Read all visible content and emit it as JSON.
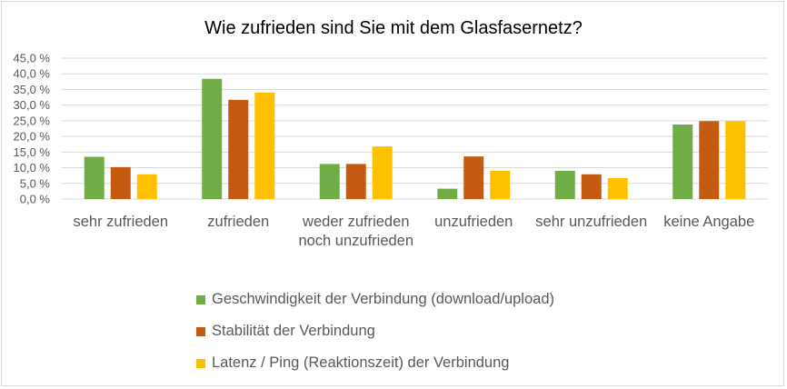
{
  "chart_data": {
    "type": "bar",
    "title": "Wie zufrieden sind Sie mit dem Glasfasernetz?",
    "categories": [
      "sehr zufrieden",
      "zufrieden",
      "weder zufrieden noch unzufrieden",
      "unzufrieden",
      "sehr unzufrieden",
      "keine Angabe"
    ],
    "ylim": [
      0,
      45
    ],
    "yticks": [
      "0,0 %",
      "5,0 %",
      "10,0 %",
      "15,0 %",
      "20,0 %",
      "25,0 %",
      "30,0 %",
      "35,0 %",
      "40,0 %",
      "45,0 %"
    ],
    "grid": true,
    "legend_position": "bottom",
    "series": [
      {
        "name": "Geschwindigkeit der Verbindung (download/upload)",
        "color": "#70ad47",
        "values": [
          13.5,
          38.4,
          11.2,
          3.3,
          9.0,
          23.8
        ]
      },
      {
        "name": "Stabilität der Verbindung",
        "color": "#c55a11",
        "values": [
          10.2,
          31.7,
          11.2,
          13.6,
          7.9,
          24.9
        ]
      },
      {
        "name": "Latenz / Ping (Reaktionszeit) der Verbindung",
        "color": "#ffc000",
        "values": [
          7.9,
          34.0,
          16.8,
          9.0,
          6.7,
          24.9
        ]
      }
    ]
  }
}
